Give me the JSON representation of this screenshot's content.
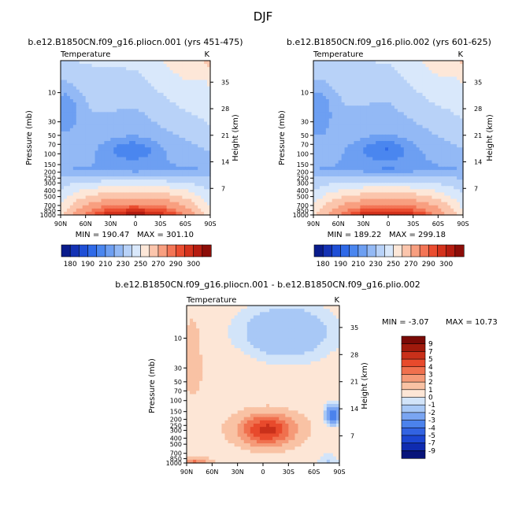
{
  "figure": {
    "title": "DJF"
  },
  "palettes": {
    "abs": [
      "#0a1c8c",
      "#1432b4",
      "#1f4fd6",
      "#2f6ae8",
      "#4a86ef",
      "#6d9ff2",
      "#93b9f5",
      "#b8d2f8",
      "#d9e8fb",
      "#fde7d8",
      "#fbc5ac",
      "#f89f80",
      "#f37556",
      "#ea4d30",
      "#d4321c",
      "#b51c10",
      "#8c0d08"
    ],
    "diff": [
      "#08147a",
      "#0f2bb0",
      "#1c46d2",
      "#3263e2",
      "#4b82ec",
      "#7aa5f2",
      "#a8c8f6",
      "#d2e4f9",
      "#fde6d6",
      "#f9c2a4",
      "#f59a78",
      "#f0704e",
      "#e84a2c",
      "#c9301a",
      "#a01a0c",
      "#7a0a06"
    ]
  },
  "chart_data": [
    {
      "type": "contour",
      "id": "top-left",
      "title": "b.e12.B1850CN.f09_g16.pliocn.001 (yrs 451-475)",
      "left_label": "Temperature",
      "right_label": "K",
      "ylabel": "Pressure (mb)",
      "y2label": "Height (km)",
      "x_ticks": [
        "90N",
        "60N",
        "30N",
        "0",
        "30S",
        "60S",
        "90S"
      ],
      "y_ticks": [
        "10",
        "30",
        "50",
        "70",
        "100",
        "150",
        "200",
        "250",
        "300",
        "400",
        "500",
        "700",
        "850",
        "1000"
      ],
      "y_tick_values": [
        10,
        30,
        50,
        70,
        100,
        150,
        200,
        250,
        300,
        400,
        500,
        700,
        850,
        1000
      ],
      "y2_ticks": [
        "35",
        "28",
        "21",
        "14",
        "7"
      ],
      "y2_tick_values": [
        35,
        28,
        21,
        14,
        7
      ],
      "ylim_mb": [
        1000,
        3
      ],
      "min_label": "MIN = 190.47",
      "max_label": "MAX = 301.10",
      "min": 190.47,
      "max": 301.1
    },
    {
      "type": "contour",
      "id": "top-right",
      "title": "b.e12.B1850CN.f09_g16.plio.002 (yrs 601-625)",
      "left_label": "Temperature",
      "right_label": "K",
      "ylabel": "Pressure (mb)",
      "y2label": "Height (km)",
      "x_ticks": [
        "90N",
        "60N",
        "30N",
        "0",
        "30S",
        "60S",
        "90S"
      ],
      "y_ticks": [
        "10",
        "30",
        "50",
        "70",
        "100",
        "150",
        "200",
        "250",
        "300",
        "400",
        "500",
        "700",
        "850",
        "1000"
      ],
      "y_tick_values": [
        10,
        30,
        50,
        70,
        100,
        150,
        200,
        250,
        300,
        400,
        500,
        700,
        850,
        1000
      ],
      "y2_ticks": [
        "35",
        "28",
        "21",
        "14",
        "7"
      ],
      "y2_tick_values": [
        35,
        28,
        21,
        14,
        7
      ],
      "ylim_mb": [
        1000,
        3
      ],
      "min_label": "MIN = 189.22",
      "max_label": "MAX = 299.18",
      "min": 189.22,
      "max": 299.18
    },
    {
      "type": "contour",
      "id": "bottom-diff",
      "title": "b.e12.B1850CN.f09_g16.pliocn.001 - b.e12.B1850CN.f09_g16.plio.002",
      "left_label": "Temperature",
      "right_label": "K",
      "ylabel": "Pressure (mb)",
      "y2label": "Height (km)",
      "x_ticks": [
        "90N",
        "60N",
        "30N",
        "0",
        "30S",
        "60S",
        "90S"
      ],
      "y_ticks": [
        "10",
        "30",
        "50",
        "70",
        "100",
        "150",
        "200",
        "250",
        "300",
        "400",
        "500",
        "700",
        "850",
        "1000"
      ],
      "y_tick_values": [
        10,
        30,
        50,
        70,
        100,
        150,
        200,
        250,
        300,
        400,
        500,
        700,
        850,
        1000
      ],
      "y2_ticks": [
        "35",
        "28",
        "21",
        "14",
        "7"
      ],
      "y2_tick_values": [
        35,
        28,
        21,
        14,
        7
      ],
      "ylim_mb": [
        1000,
        3
      ],
      "min_label": "MIN = -3.07",
      "max_label": "MAX = 10.73",
      "min": -3.07,
      "max": 10.73
    }
  ],
  "abs_colorbar": {
    "labels": [
      "180",
      "190",
      "210",
      "230",
      "250",
      "270",
      "290",
      "300"
    ]
  },
  "diff_colorbar": {
    "labels": [
      "9",
      "7",
      "5",
      "4",
      "3",
      "2",
      "1",
      "0",
      "-1",
      "-2",
      "-3",
      "-4",
      "-5",
      "-7",
      "-9"
    ]
  }
}
